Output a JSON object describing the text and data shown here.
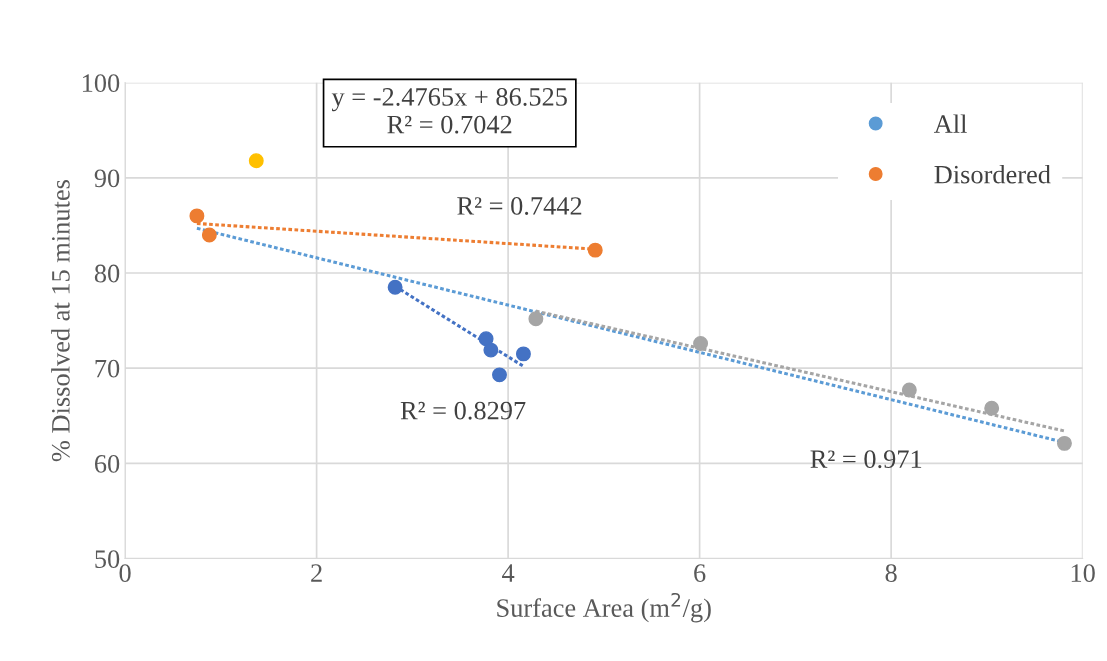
{
  "chart_data": {
    "type": "scatter",
    "xlabel": "Surface Area (m$^{2}$/g)",
    "ylabel": "% Dissolved at 15 minutes",
    "xlim": [
      0,
      10
    ],
    "xticks": [
      0,
      2,
      4,
      6,
      8,
      10
    ],
    "ylim": [
      50,
      100
    ],
    "yticks": [
      50,
      60,
      70,
      80,
      90,
      100
    ],
    "grid": true,
    "legend": "top right",
    "series": [
      {
        "type": "line",
        "marker": "none",
        "name": "All",
        "color": "#5b9bd5",
        "line_style": "dotted",
        "x": [
          0.75,
          9.81
        ],
        "values": [
          84.7,
          62.2
        ]
      },
      {
        "marker": "circle",
        "name": "Disordered",
        "color": "#ed7d31",
        "x": [
          0.75,
          0.88,
          4.91
        ],
        "values": [
          86.0,
          84.0,
          82.4
        ]
      },
      {
        "type": "line",
        "marker": "none",
        "color": "#ed7d31",
        "line_style": "dotted",
        "x": [
          0.75,
          4.91
        ],
        "values": [
          85.2,
          82.5
        ]
      },
      {
        "marker": "circle",
        "color": "#ffc000",
        "x": [
          1.37
        ],
        "values": [
          91.8
        ]
      },
      {
        "marker": "circle",
        "color": "#4472c4",
        "x": [
          2.82,
          3.77,
          3.82,
          3.91,
          4.16
        ],
        "values": [
          78.5,
          73.1,
          71.9,
          69.3,
          71.5
        ]
      },
      {
        "type": "line",
        "marker": "none",
        "color": "#4472c4",
        "line_style": "dotted",
        "x": [
          2.82,
          4.16
        ],
        "values": [
          78.6,
          70.2
        ]
      },
      {
        "marker": "circle",
        "color": "#a5a5a5",
        "x": [
          4.29,
          6.01,
          8.19,
          9.05,
          9.81
        ],
        "values": [
          75.2,
          72.6,
          67.7,
          65.8,
          62.1
        ]
      },
      {
        "type": "line",
        "marker": "none",
        "color": "#a5a5a5",
        "line_style": "dotted",
        "x": [
          4.29,
          9.81
        ],
        "values": [
          76.0,
          63.4
        ]
      }
    ],
    "annotations": [
      "y = -2.4765x + 86.525\nR² = 0.7042",
      "R² = 0.7442",
      "R² = 0.8297",
      "R² = 0.971"
    ]
  }
}
